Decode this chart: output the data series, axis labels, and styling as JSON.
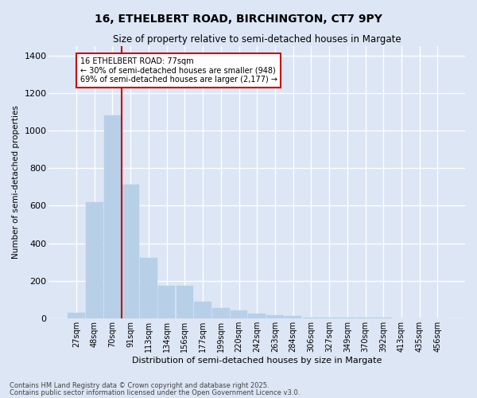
{
  "title_line1": "16, ETHELBERT ROAD, BIRCHINGTON, CT7 9PY",
  "title_line2": "Size of property relative to semi-detached houses in Margate",
  "xlabel": "Distribution of semi-detached houses by size in Margate",
  "ylabel": "Number of semi-detached properties",
  "categories": [
    "27sqm",
    "48sqm",
    "70sqm",
    "91sqm",
    "113sqm",
    "134sqm",
    "156sqm",
    "177sqm",
    "199sqm",
    "220sqm",
    "242sqm",
    "263sqm",
    "284sqm",
    "306sqm",
    "327sqm",
    "349sqm",
    "370sqm",
    "392sqm",
    "413sqm",
    "435sqm",
    "456sqm"
  ],
  "values": [
    30,
    620,
    1080,
    710,
    320,
    175,
    175,
    90,
    55,
    40,
    25,
    15,
    10,
    5,
    5,
    3,
    3,
    2,
    1,
    1,
    0
  ],
  "bar_color": "#b8cfe8",
  "bar_edge_color": "#b8cfe8",
  "background_color": "#dce6f5",
  "plot_background": "#dce6f5",
  "grid_color": "#ffffff",
  "vline_x_index": 2.5,
  "vline_color": "#cc0000",
  "annotation_text": "16 ETHELBERT ROAD: 77sqm\n← 30% of semi-detached houses are smaller (948)\n69% of semi-detached houses are larger (2,177) →",
  "annotation_box_color": "#ffffff",
  "annotation_box_edge": "#cc0000",
  "footer_line1": "Contains HM Land Registry data © Crown copyright and database right 2025.",
  "footer_line2": "Contains public sector information licensed under the Open Government Licence v3.0.",
  "ylim": [
    0,
    1450
  ],
  "yticks": [
    0,
    200,
    400,
    600,
    800,
    1000,
    1200,
    1400
  ]
}
